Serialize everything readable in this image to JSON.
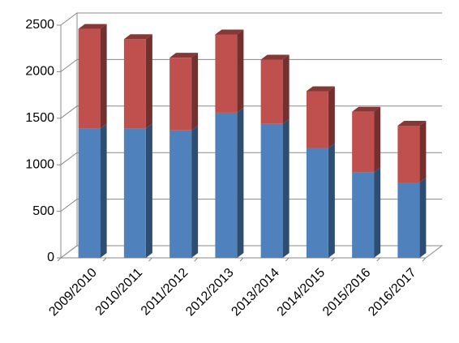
{
  "chart_data": {
    "type": "bar",
    "stacked": true,
    "three_d": true,
    "categories": [
      "2009/2010",
      "2010/2011",
      "2011/2012",
      "2012/2013",
      "2013/2014",
      "2014/2015",
      "2015/2016",
      "2016/2017"
    ],
    "series": [
      {
        "color": "#4f81bd",
        "values": [
          1390,
          1390,
          1370,
          1560,
          1440,
          1180,
          920,
          810
        ]
      },
      {
        "color": "#c0504d",
        "values": [
          1070,
          960,
          780,
          840,
          690,
          610,
          650,
          610
        ]
      }
    ],
    "ylim": [
      0,
      2500
    ],
    "yticks": [
      0,
      500,
      1000,
      1500,
      2000,
      2500
    ],
    "grid": true
  }
}
